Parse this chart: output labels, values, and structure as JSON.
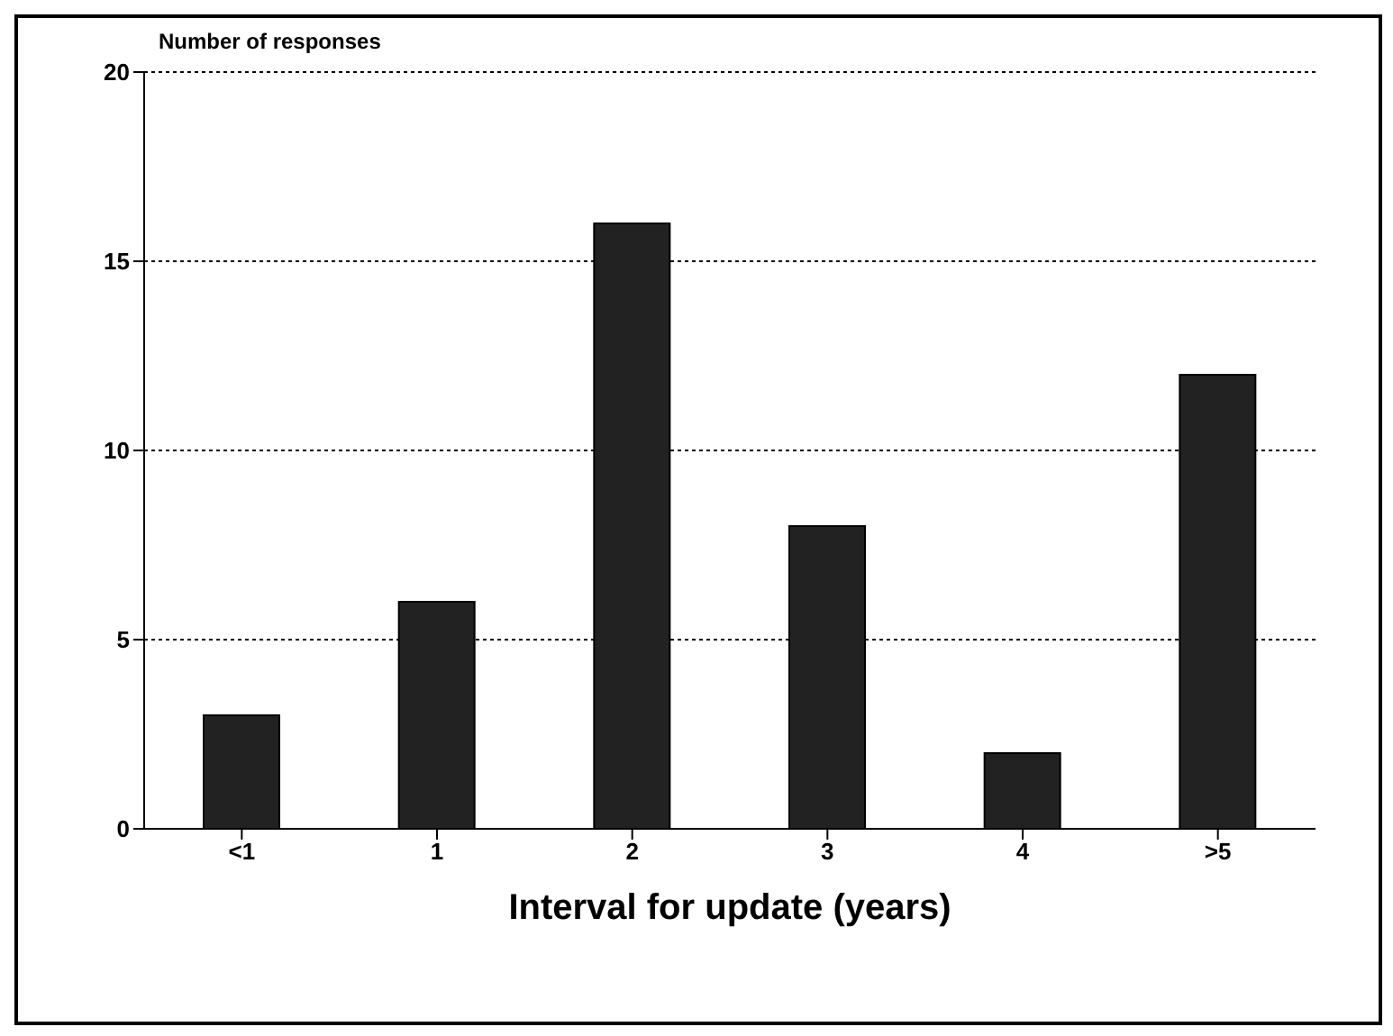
{
  "chart_data": {
    "type": "bar",
    "ylabel": "Number of responses",
    "xlabel": "Interval for update (years)",
    "categories": [
      "<1",
      "1",
      "2",
      "3",
      "4",
      ">5"
    ],
    "values": [
      3,
      6,
      16,
      8,
      2,
      12
    ],
    "color": "#222222",
    "ylim": [
      0,
      20
    ],
    "yticks": [
      0,
      5,
      10,
      15,
      20
    ],
    "grid": "y"
  }
}
